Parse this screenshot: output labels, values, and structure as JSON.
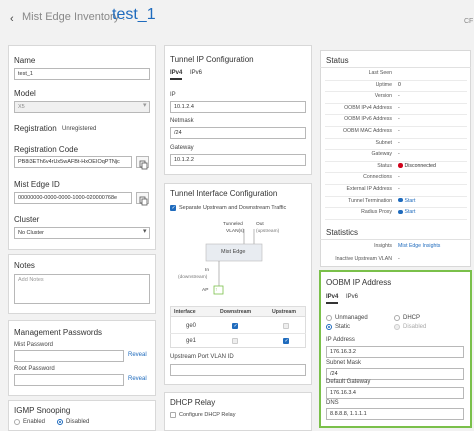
{
  "header": {
    "breadcrumb": "Mist Edge Inventory :",
    "title": "test_1",
    "corner_label": "CF"
  },
  "general": {
    "name_label": "Name",
    "name_value": "test_1",
    "model_label": "Model",
    "model_value": "X5",
    "registration_label": "Registration",
    "registration_value": "Unregistered",
    "reg_code_label": "Registration Code",
    "reg_code_value": "PB8i3ETh6v4rUx5wAFBt-HxOEIOqPTNjc",
    "mist_edge_id_label": "Mist Edge ID",
    "mist_edge_id_value": "00000000-0000-0000-1000-020000768e",
    "cluster_label": "Cluster",
    "cluster_value": "No Cluster"
  },
  "notes": {
    "title": "Notes",
    "placeholder": "Add Notes"
  },
  "passwords": {
    "title": "Management Passwords",
    "mist_label": "Mist Password",
    "root_label": "Root Password",
    "reveal": "Reveal"
  },
  "igmp": {
    "title": "IGMP Snooping",
    "enabled": "Enabled",
    "disabled": "Disabled"
  },
  "tunnel_ip": {
    "title": "Tunnel IP Configuration",
    "tab_ipv4": "IPv4",
    "tab_ipv6": "IPv6",
    "ip_label": "IP",
    "ip_value": "10.1.2.4",
    "netmask_label": "Netmask",
    "netmask_value": "/24",
    "gateway_label": "Gateway",
    "gateway_value": "10.1.2.2"
  },
  "tunnel_iface": {
    "title": "Tunnel Interface Configuration",
    "separate_label": "Separate Upstream and Downstream Traffic",
    "diag_tunneled": "Tunneled",
    "diag_vlans": "VLAN(s)",
    "diag_out": "Out",
    "diag_upstream": "(upstream)",
    "diag_box": "Mist Edge",
    "diag_in": "In",
    "diag_downstream": "(downstream)",
    "diag_ap": "AP",
    "col_interface": "Interface",
    "col_downstream": "Downstream",
    "col_upstream": "Upstream",
    "row_ge0": "ge0",
    "row_ge1": "ge1",
    "vlan_label": "Upstream Port VLAN ID"
  },
  "dhcp": {
    "title": "DHCP Relay",
    "configure_label": "Configure DHCP Relay"
  },
  "status": {
    "title": "Status",
    "rows": [
      {
        "k": "Last Seen",
        "v": ""
      },
      {
        "k": "Uptime",
        "v": "0"
      },
      {
        "k": "Version",
        "v": "-"
      },
      {
        "k": "OOBM IPv4 Address",
        "v": "-"
      },
      {
        "k": "OOBM IPv6 Address",
        "v": "-"
      },
      {
        "k": "OOBM MAC Address",
        "v": "-"
      },
      {
        "k": "Subnet",
        "v": "-"
      },
      {
        "k": "Gateway",
        "v": "-"
      },
      {
        "k": "Status",
        "v": "Disconnected"
      },
      {
        "k": "Connections",
        "v": "-"
      },
      {
        "k": "External IP Address",
        "v": "-"
      },
      {
        "k": "Tunnel Termination",
        "v": "Start"
      },
      {
        "k": "Radius Proxy",
        "v": "Start"
      }
    ]
  },
  "statistics": {
    "title": "Statistics",
    "insights_label": "Insights",
    "insights_value": "Mist Edge Insights",
    "vlan_label": "Inactive Upstream VLAN",
    "vlan_value": "-"
  },
  "oobm": {
    "title": "OOBM IP Address",
    "tab_ipv4": "IPv4",
    "tab_ipv6": "IPv6",
    "unmanaged": "Unmanaged",
    "dhcp": "DHCP",
    "static": "Static",
    "disabled": "Disabled",
    "ip_label": "IP Address",
    "ip_value": "176.16.3.2",
    "subnet_label": "Subnet Mask",
    "subnet_value": "/24",
    "gateway_label": "Default Gateway",
    "gateway_value": "176.16.3.4",
    "dns_label": "DNS",
    "dns_value": "8.8.8.8, 1.1.1.1"
  },
  "colors": {
    "accent": "#1f6bbd",
    "danger": "#d0021b",
    "highlight": "#7ac04a"
  }
}
